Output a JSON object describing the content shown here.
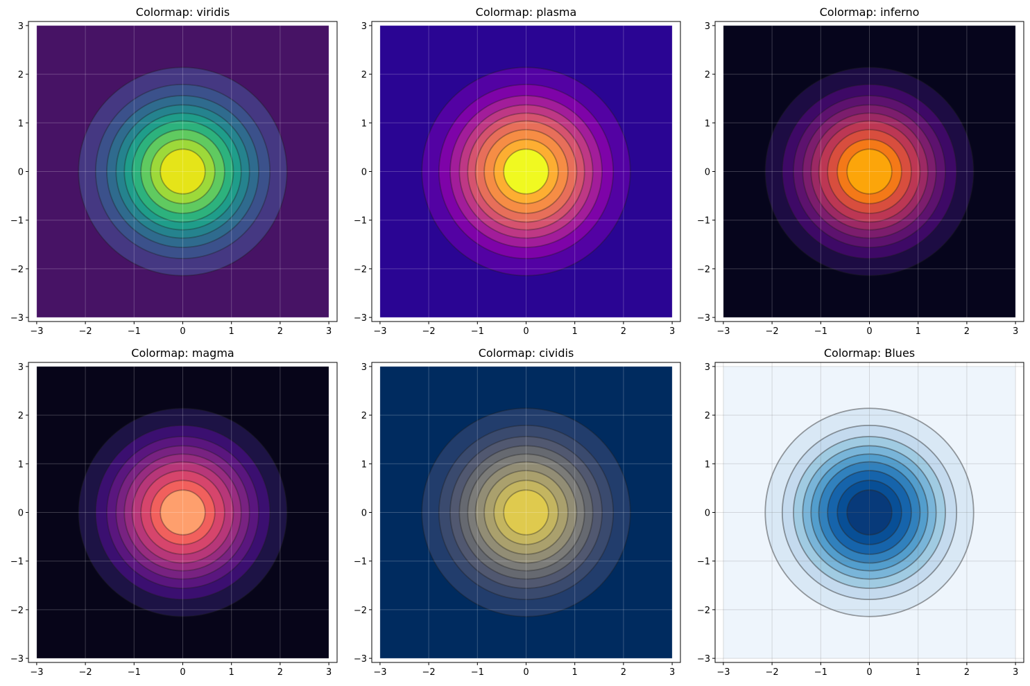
{
  "chart_data": [
    {
      "type": "heatmap",
      "title": "Colormap: viridis",
      "cmap": "viridis",
      "colors": [
        "#471365",
        "#453882",
        "#3b518b",
        "#2f6b8e",
        "#25838e",
        "#1f9d8a",
        "#2db27d",
        "#60ca60",
        "#9dd93a",
        "#e5e419"
      ],
      "xlim": [
        -3,
        3
      ],
      "ylim": [
        -3,
        3
      ],
      "xticks": [
        "−3",
        "−2",
        "−1",
        "0",
        "1",
        "2",
        "3"
      ],
      "yticks": [
        "−3",
        "−2",
        "−1",
        "0",
        "1",
        "2",
        "3"
      ],
      "contour_radii": [
        2.14,
        1.79,
        1.56,
        1.37,
        1.2,
        1.04,
        0.86,
        0.66,
        0.46
      ],
      "grid": true
    },
    {
      "type": "heatmap",
      "title": "Colormap: plasma",
      "cmap": "plasma",
      "colors": [
        "#2a0593",
        "#5302a3",
        "#7e03a8",
        "#a21d9a",
        "#be3885",
        "#d5536f",
        "#e76f5a",
        "#f68d45",
        "#fdae32",
        "#f0f921"
      ],
      "xlim": [
        -3,
        3
      ],
      "ylim": [
        -3,
        3
      ],
      "xticks": [
        "−3",
        "−2",
        "−1",
        "0",
        "1",
        "2",
        "3"
      ],
      "yticks": [
        "−3",
        "−2",
        "−1",
        "0",
        "1",
        "2",
        "3"
      ],
      "contour_radii": [
        2.14,
        1.79,
        1.56,
        1.37,
        1.2,
        1.04,
        0.86,
        0.66,
        0.46
      ],
      "grid": true
    },
    {
      "type": "heatmap",
      "title": "Colormap: inferno",
      "cmap": "inferno",
      "colors": [
        "#06051c",
        "#1d0c43",
        "#3e0966",
        "#5d126e",
        "#7c1d6d",
        "#9c2964",
        "#bc3754",
        "#d84e3e",
        "#f47918",
        "#fca50a",
        "#f2f27b"
      ],
      "xlim": [
        -3,
        3
      ],
      "ylim": [
        -3,
        3
      ],
      "xticks": [
        "−3",
        "−2",
        "−1",
        "0",
        "1",
        "2",
        "3"
      ],
      "yticks": [
        "−3",
        "−2",
        "−1",
        "0",
        "1",
        "2",
        "3"
      ],
      "contour_radii": [
        2.14,
        1.79,
        1.56,
        1.37,
        1.2,
        1.04,
        0.86,
        0.66,
        0.46
      ],
      "grid": true
    },
    {
      "type": "heatmap",
      "title": "Colormap: magma",
      "cmap": "magma",
      "colors": [
        "#070519",
        "#1d1345",
        "#3b0f70",
        "#5a167e",
        "#782281",
        "#972c80",
        "#b73779",
        "#d6456c",
        "#f1605d",
        "#fe9f6d",
        "#fde8a5"
      ],
      "xlim": [
        -3,
        3
      ],
      "ylim": [
        -3,
        3
      ],
      "xticks": [
        "−3",
        "−2",
        "−1",
        "0",
        "1",
        "2",
        "3"
      ],
      "yticks": [
        "−3",
        "−2",
        "−1",
        "0",
        "1",
        "2",
        "3"
      ],
      "contour_radii": [
        2.14,
        1.79,
        1.56,
        1.37,
        1.2,
        1.04,
        0.86,
        0.66,
        0.46
      ],
      "grid": true
    },
    {
      "type": "heatmap",
      "title": "Colormap: cividis",
      "cmap": "cividis",
      "colors": [
        "#002b5f",
        "#223d6c",
        "#3a4a6e",
        "#515870",
        "#666970",
        "#7b7b78",
        "#928d75",
        "#aaa06d",
        "#c4b560",
        "#dfca4e",
        "#f1dc33"
      ],
      "xlim": [
        -3,
        3
      ],
      "ylim": [
        -3,
        3
      ],
      "xticks": [
        "−3",
        "−2",
        "−1",
        "0",
        "1",
        "2",
        "3"
      ],
      "yticks": [
        "−3",
        "−2",
        "−1",
        "0",
        "1",
        "2",
        "3"
      ],
      "contour_radii": [
        2.14,
        1.79,
        1.56,
        1.37,
        1.2,
        1.04,
        0.86,
        0.66,
        0.46
      ],
      "grid": true
    },
    {
      "type": "heatmap",
      "title": "Colormap: Blues",
      "cmap": "Blues",
      "colors": [
        "#eef5fc",
        "#d9e8f5",
        "#c4daee",
        "#a0cbe2",
        "#79b5d9",
        "#539ecd",
        "#3181bd",
        "#1664ab",
        "#084f96",
        "#083a7a"
      ],
      "xlim": [
        -3,
        3
      ],
      "ylim": [
        -3,
        3
      ],
      "xticks": [
        "−3",
        "−2",
        "−1",
        "0",
        "1",
        "2",
        "3"
      ],
      "yticks": [
        "−3",
        "−2",
        "−1",
        "0",
        "1",
        "2",
        "3"
      ],
      "contour_radii": [
        2.14,
        1.79,
        1.56,
        1.37,
        1.2,
        1.04,
        0.86,
        0.66,
        0.46
      ],
      "grid": true
    }
  ]
}
